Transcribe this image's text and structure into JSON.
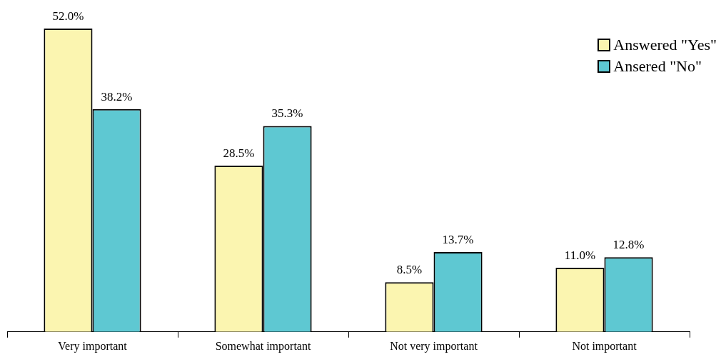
{
  "chart_data": {
    "type": "bar",
    "categories": [
      "Very important",
      "Somewhat important",
      "Not very important",
      "Not important"
    ],
    "series": [
      {
        "name": "Answered \"Yes\"",
        "color": "#fbf5b0",
        "values": [
          52.0,
          28.5,
          8.5,
          11.0
        ],
        "value_labels": [
          "52.0%",
          "28.5%",
          "8.5%",
          "11.0%"
        ]
      },
      {
        "name": "Ansered \"No\"",
        "color": "#5ec8d2",
        "values": [
          38.2,
          35.3,
          13.7,
          12.8
        ],
        "value_labels": [
          "38.2%",
          "35.3%",
          "13.7%",
          "12.8%"
        ]
      }
    ],
    "legend": "top right"
  }
}
